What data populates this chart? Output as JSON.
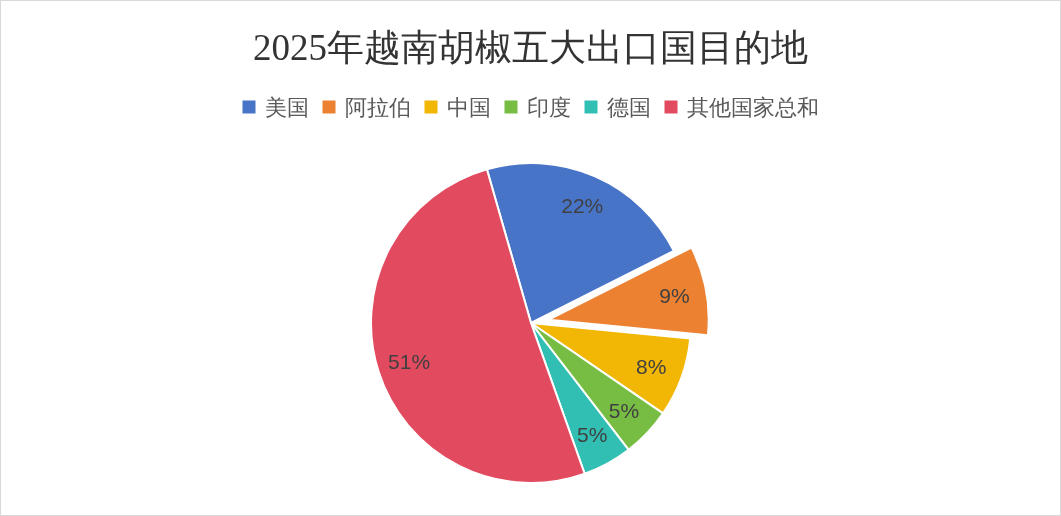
{
  "chart_data": {
    "type": "pie",
    "title": "2025年越南胡椒五大出口国目的地",
    "categories": [
      "美国",
      "阿拉伯",
      "中国",
      "印度",
      "德国",
      "其他国家总和"
    ],
    "values": [
      22,
      9,
      8,
      5,
      5,
      51
    ],
    "colors": [
      "#4874c8",
      "#ec8132",
      "#f2b705",
      "#78bd43",
      "#30bfb2",
      "#e24b5f"
    ],
    "value_labels": [
      "22%",
      "9%",
      "8%",
      "5%",
      "5%",
      "51%"
    ],
    "legend": "top"
  }
}
